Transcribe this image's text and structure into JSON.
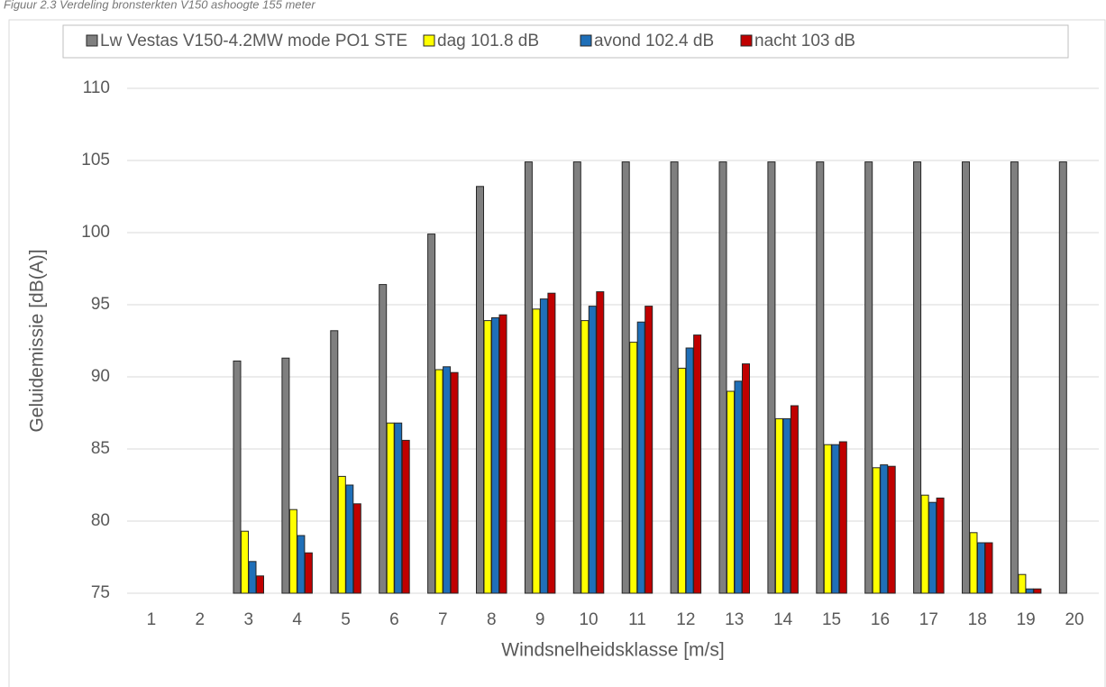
{
  "caption": "Figuur 2.3 Verdeling bronsterkten V150 ashoogte 155 meter",
  "chart_data": {
    "type": "bar",
    "categories": [
      "1",
      "2",
      "3",
      "4",
      "5",
      "6",
      "7",
      "8",
      "9",
      "10",
      "11",
      "12",
      "13",
      "14",
      "15",
      "16",
      "17",
      "18",
      "19",
      "20"
    ],
    "xlabel": "Windsnelheidsklasse [m/s]",
    "ylabel": "Geluidemissie [dB(A)]",
    "ylim": [
      75,
      110
    ],
    "yticks": [
      75,
      80,
      85,
      90,
      95,
      100,
      105,
      110
    ],
    "grid": true,
    "legend": "top",
    "series": [
      {
        "name": "Lw Vestas V150-4.2MW mode PO1 STE",
        "color": "#7f7f7f",
        "values": [
          null,
          null,
          91.1,
          91.3,
          93.2,
          96.4,
          99.9,
          103.2,
          104.9,
          104.9,
          104.9,
          104.9,
          104.9,
          104.9,
          104.9,
          104.9,
          104.9,
          104.9,
          104.9,
          104.9
        ]
      },
      {
        "name": "dag 101.8 dB",
        "color": "#ffff00",
        "values": [
          null,
          null,
          79.3,
          80.8,
          83.1,
          86.8,
          90.5,
          93.9,
          94.7,
          93.9,
          92.4,
          90.6,
          89.0,
          87.1,
          85.3,
          83.7,
          81.8,
          79.2,
          76.3,
          null
        ]
      },
      {
        "name": "avond 102.4 dB",
        "color": "#1f6fb8",
        "values": [
          null,
          null,
          77.2,
          79.0,
          82.5,
          86.8,
          90.7,
          94.1,
          95.4,
          94.9,
          93.8,
          92.0,
          89.7,
          87.1,
          85.3,
          83.9,
          81.3,
          78.5,
          75.3,
          null
        ]
      },
      {
        "name": "nacht 103 dB",
        "color": "#c00000",
        "values": [
          null,
          null,
          76.2,
          77.8,
          81.2,
          85.6,
          90.3,
          94.3,
          95.8,
          95.9,
          94.9,
          92.9,
          90.9,
          88.0,
          85.5,
          83.8,
          81.6,
          78.5,
          75.3,
          null
        ]
      }
    ]
  }
}
